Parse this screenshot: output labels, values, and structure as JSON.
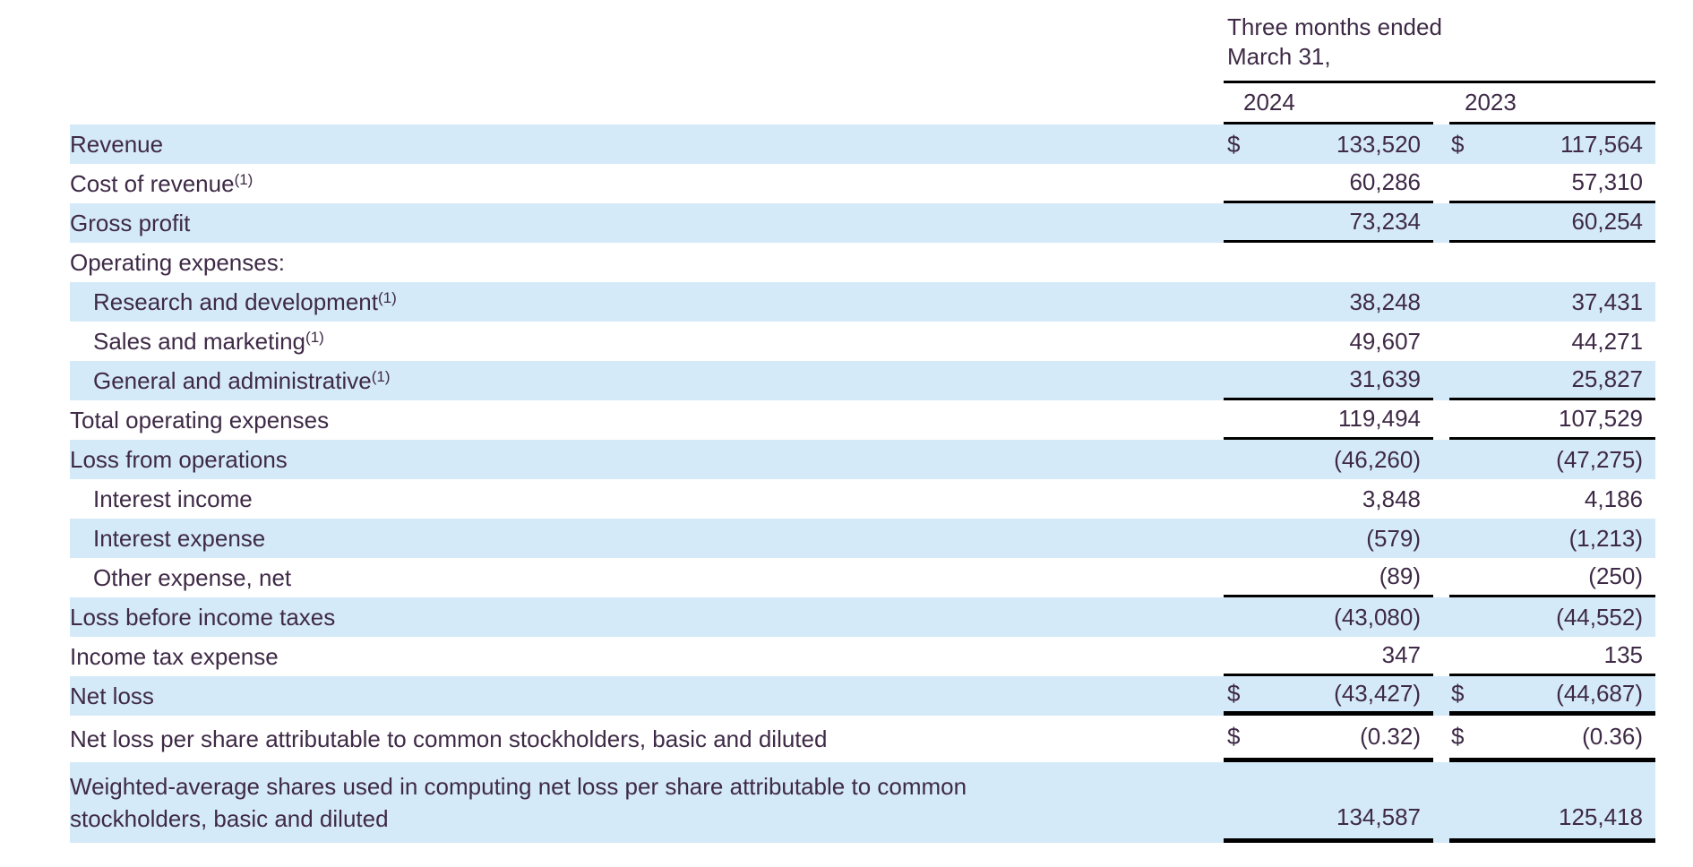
{
  "colors": {
    "row_highlight": "#d5eaf8",
    "text": "#3e2a46",
    "border": "#000000"
  },
  "table": {
    "period": {
      "line1": "Three months ended",
      "line2": "March 31,"
    },
    "columns": [
      "2024",
      "2023"
    ],
    "rows": [
      {
        "label": "Revenue",
        "sup": "",
        "indent": 0,
        "shaded": true,
        "dollar": true,
        "v2024": "133,520",
        "v2023": "117,564",
        "border": "none"
      },
      {
        "label": "Cost of revenue",
        "sup": "(1)",
        "indent": 0,
        "shaded": false,
        "dollar": false,
        "v2024": "60,286",
        "v2023": "57,310",
        "border": "thin"
      },
      {
        "label": "Gross profit",
        "sup": "",
        "indent": 0,
        "shaded": true,
        "dollar": false,
        "v2024": "73,234",
        "v2023": "60,254",
        "border": "thin"
      },
      {
        "label": "Operating expenses:",
        "sup": "",
        "indent": 0,
        "shaded": false,
        "dollar": false,
        "v2024": "",
        "v2023": "",
        "border": "none"
      },
      {
        "label": "Research and development",
        "sup": "(1)",
        "indent": 1,
        "shaded": true,
        "dollar": false,
        "v2024": "38,248",
        "v2023": "37,431",
        "border": "none"
      },
      {
        "label": "Sales and marketing",
        "sup": "(1)",
        "indent": 1,
        "shaded": false,
        "dollar": false,
        "v2024": "49,607",
        "v2023": "44,271",
        "border": "none"
      },
      {
        "label": "General and administrative",
        "sup": "(1)",
        "indent": 1,
        "shaded": true,
        "dollar": false,
        "v2024": "31,639",
        "v2023": "25,827",
        "border": "thin"
      },
      {
        "label": "Total operating expenses",
        "sup": "",
        "indent": 0,
        "shaded": false,
        "dollar": false,
        "v2024": "119,494",
        "v2023": "107,529",
        "border": "thin"
      },
      {
        "label": "Loss from operations",
        "sup": "",
        "indent": 0,
        "shaded": true,
        "dollar": false,
        "v2024": "(46,260)",
        "v2023": "(47,275)",
        "border": "none"
      },
      {
        "label": "Interest income",
        "sup": "",
        "indent": 1,
        "shaded": false,
        "dollar": false,
        "v2024": "3,848",
        "v2023": "4,186",
        "border": "none"
      },
      {
        "label": "Interest expense",
        "sup": "",
        "indent": 1,
        "shaded": true,
        "dollar": false,
        "v2024": "(579)",
        "v2023": "(1,213)",
        "border": "none"
      },
      {
        "label": "Other expense, net",
        "sup": "",
        "indent": 1,
        "shaded": false,
        "dollar": false,
        "v2024": "(89)",
        "v2023": "(250)",
        "border": "thin"
      },
      {
        "label": "Loss before income taxes",
        "sup": "",
        "indent": 0,
        "shaded": true,
        "dollar": false,
        "v2024": "(43,080)",
        "v2023": "(44,552)",
        "border": "none"
      },
      {
        "label": "Income tax expense",
        "sup": "",
        "indent": 0,
        "shaded": false,
        "dollar": false,
        "v2024": "347",
        "v2023": "135",
        "border": "thin"
      },
      {
        "label": "Net loss",
        "sup": "",
        "indent": 0,
        "shaded": true,
        "dollar": true,
        "v2024": "(43,427)",
        "v2023": "(44,687)",
        "border": "thick"
      },
      {
        "label": "Net loss per share attributable to common stockholders, basic and diluted",
        "sup": "",
        "indent": 0,
        "shaded": false,
        "dollar": true,
        "v2024": "(0.32)",
        "v2023": "(0.36)",
        "border": "thick",
        "size": "m"
      },
      {
        "label": "Weighted-average shares used in computing net loss per share attributable to common stockholders, basic and diluted",
        "sup": "",
        "indent": 0,
        "shaded": true,
        "dollar": false,
        "v2024": "134,587",
        "v2023": "125,418",
        "border": "thick",
        "size": "l"
      }
    ]
  }
}
